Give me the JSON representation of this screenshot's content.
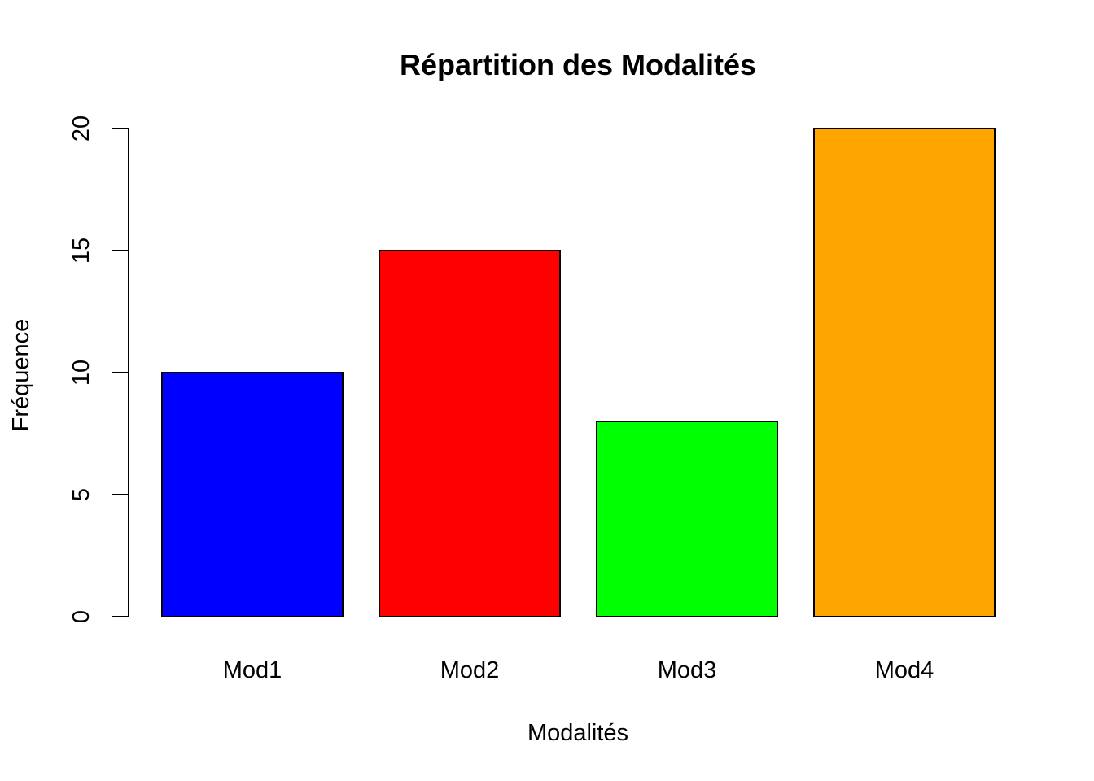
{
  "chart_data": {
    "type": "bar",
    "title": "Répartition des Modalités",
    "xlabel": "Modalités",
    "ylabel": "Fréquence",
    "categories": [
      "Mod1",
      "Mod2",
      "Mod3",
      "Mod4"
    ],
    "values": [
      10,
      15,
      8,
      20
    ],
    "colors": [
      "#0000FF",
      "#FF0000",
      "#00FF00",
      "#FFA500"
    ],
    "ylim": [
      0,
      20
    ],
    "yticks": [
      0,
      5,
      10,
      15,
      20
    ],
    "ytick_labels": [
      "0",
      "5",
      "10",
      "15",
      "20"
    ],
    "grid": false,
    "legend": "none"
  }
}
